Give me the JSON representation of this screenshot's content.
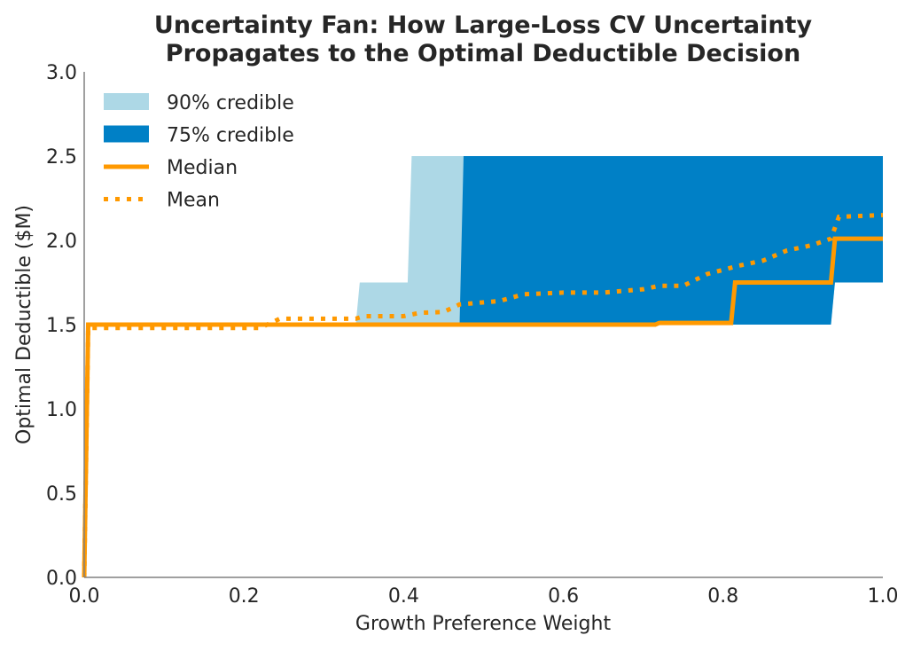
{
  "chart_data": {
    "type": "area",
    "title": "Uncertainty Fan: How Large-Loss CV Uncertainty\nPropagates to the Optimal Deductible Decision",
    "xlabel": "Growth Preference Weight",
    "ylabel": "Optimal Deductible ($M)",
    "xlim": [
      0,
      1
    ],
    "ylim": [
      0,
      3
    ],
    "xticks": [
      "0.0",
      "0.2",
      "0.4",
      "0.6",
      "0.8",
      "1.0"
    ],
    "yticks": [
      "0.0",
      "0.5",
      "1.0",
      "1.5",
      "2.0",
      "2.5",
      "3.0"
    ],
    "grid": false,
    "legend_position": "top-left",
    "colors": {
      "band90": "#add8e6",
      "band75": "#0080c6",
      "median": "#ff9900",
      "mean": "#ff9900",
      "axis": "#808080"
    },
    "series": [
      {
        "name": "90% credible",
        "kind": "band",
        "x": [
          0.0,
          0.005,
          0.34,
          0.345,
          0.405,
          0.41,
          0.935,
          0.94,
          1.0
        ],
        "lower": [
          0.0,
          1.5,
          1.5,
          1.5,
          1.5,
          1.5,
          1.5,
          1.75,
          1.75
        ],
        "upper": [
          0.0,
          1.5,
          1.5,
          1.75,
          1.75,
          2.5,
          2.5,
          2.5,
          2.5
        ]
      },
      {
        "name": "75% credible",
        "kind": "band",
        "x": [
          0.0,
          0.005,
          0.47,
          0.475,
          0.935,
          0.94,
          1.0
        ],
        "lower": [
          0.0,
          1.5,
          1.5,
          1.5,
          1.5,
          1.75,
          1.75
        ],
        "upper": [
          0.0,
          1.5,
          1.5,
          2.5,
          2.5,
          2.5,
          2.5
        ]
      },
      {
        "name": "Median",
        "kind": "line",
        "x": [
          0.0,
          0.005,
          0.715,
          0.72,
          0.81,
          0.815,
          0.935,
          0.94,
          1.0
        ],
        "y": [
          0.0,
          1.5,
          1.5,
          1.51,
          1.51,
          1.75,
          1.75,
          2.01,
          2.01
        ]
      },
      {
        "name": "Mean",
        "kind": "dotted",
        "x": [
          0.0,
          0.005,
          0.22,
          0.245,
          0.34,
          0.35,
          0.4,
          0.42,
          0.45,
          0.47,
          0.52,
          0.55,
          0.6,
          0.65,
          0.7,
          0.72,
          0.75,
          0.78,
          0.82,
          0.85,
          0.88,
          0.91,
          0.935,
          0.945,
          1.0
        ],
        "y": [
          0.0,
          1.48,
          1.48,
          1.535,
          1.535,
          1.55,
          1.55,
          1.57,
          1.575,
          1.62,
          1.64,
          1.68,
          1.69,
          1.69,
          1.71,
          1.73,
          1.73,
          1.8,
          1.85,
          1.88,
          1.94,
          1.97,
          2.01,
          2.14,
          2.15
        ]
      }
    ]
  }
}
